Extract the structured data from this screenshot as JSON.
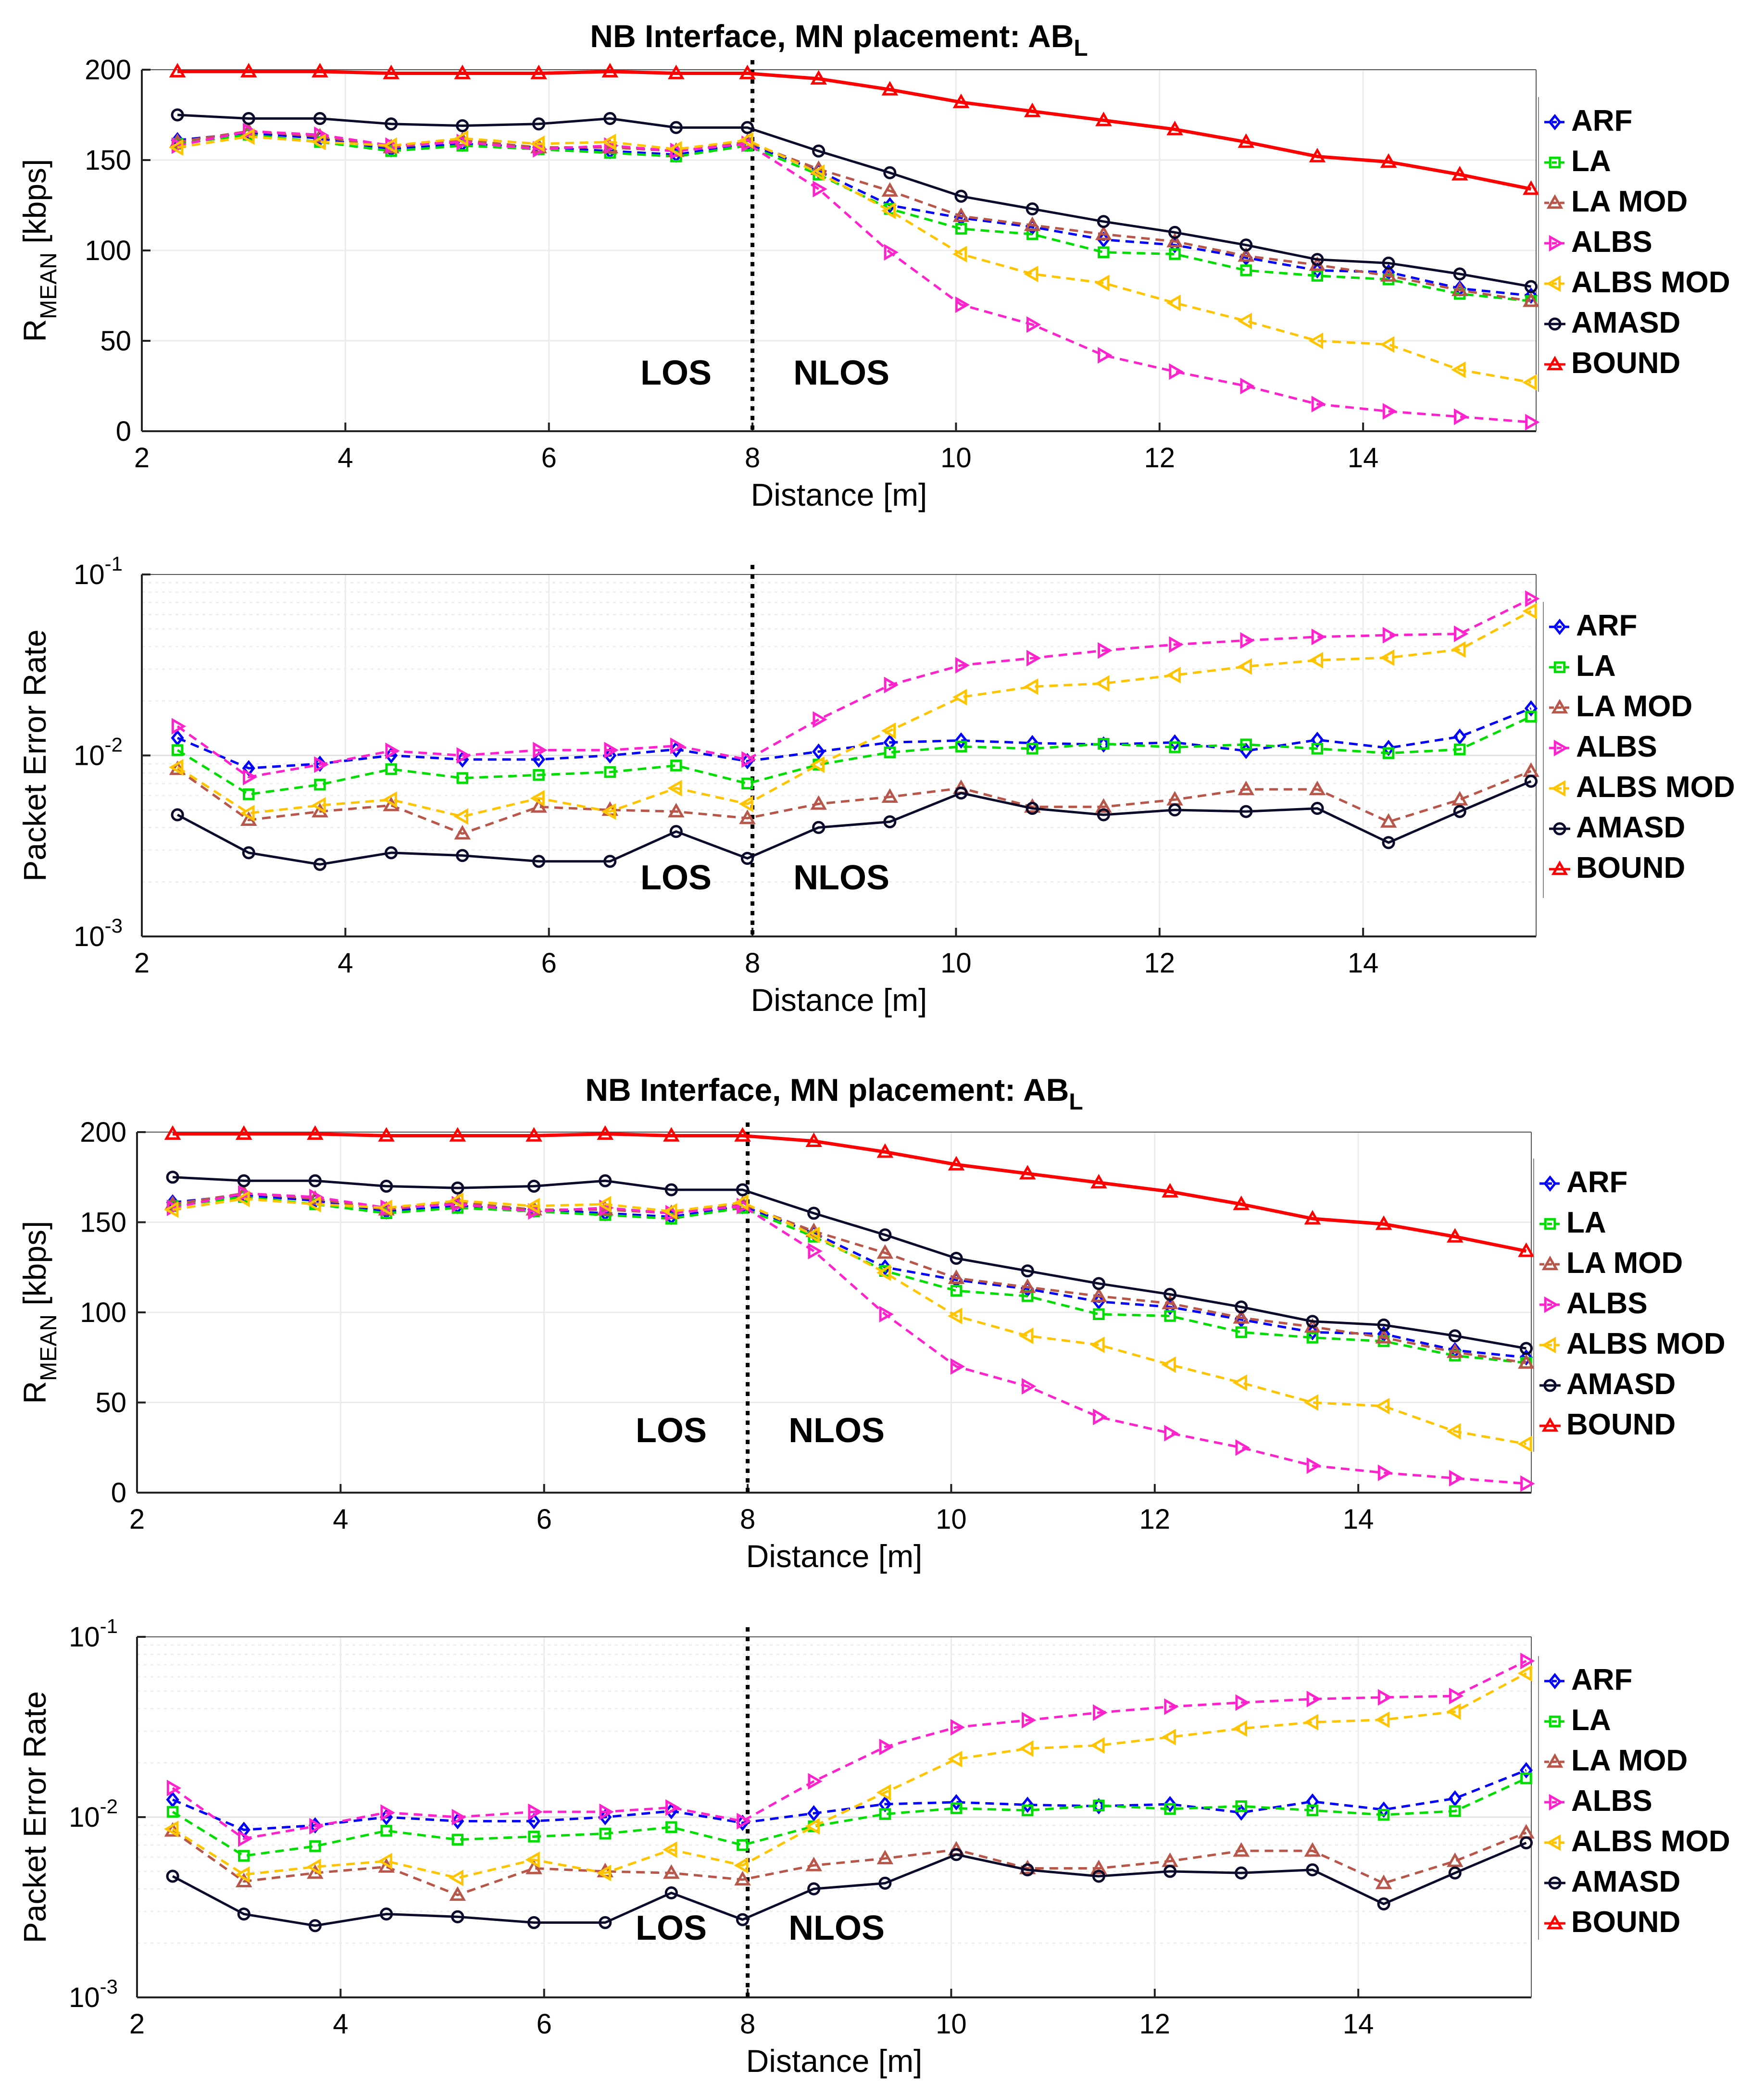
{
  "series_styles": [
    {
      "name": "ARF",
      "color": "#0000ff",
      "marker": "diamond",
      "dash": true
    },
    {
      "name": "LA",
      "color": "#00dd00",
      "marker": "square",
      "dash": true
    },
    {
      "name": "LA MOD",
      "color": "#b8564a",
      "marker": "tri-up",
      "dash": true
    },
    {
      "name": "ALBS",
      "color": "#ff22cc",
      "marker": "tri-right",
      "dash": true
    },
    {
      "name": "ALBS MOD",
      "color": "#ffc400",
      "marker": "tri-left",
      "dash": true
    },
    {
      "name": "AMASD",
      "color": "#0a0a2a",
      "marker": "circle",
      "dash": false
    },
    {
      "name": "BOUND",
      "color": "#ff0000",
      "marker": "tri-up",
      "dash": false
    }
  ],
  "chart_data": [
    {
      "type": "line",
      "title_main": "NB Interface, MN placement: AB",
      "title_sub": "L",
      "xlabel": "Distance [m]",
      "ylabel_main": "R",
      "ylabel_sub": "MEAN",
      "ylabel_unit": " [kbps]",
      "xlim": [
        2,
        15.7
      ],
      "ylim": [
        0,
        200
      ],
      "yscale": "linear",
      "xticks": [
        2,
        4,
        6,
        8,
        10,
        12,
        14
      ],
      "yticks": [
        0,
        50,
        100,
        150,
        200
      ],
      "ytick_labels": [
        "0",
        "50",
        "100",
        "150",
        "200"
      ],
      "zones": [
        "LOS",
        "NLOS"
      ],
      "divider_x": 8,
      "legend": "right",
      "x": [
        2.35,
        3.05,
        3.75,
        4.45,
        5.15,
        5.9,
        6.6,
        7.25,
        7.95,
        8.65,
        9.35,
        10.05,
        10.75,
        11.45,
        12.15,
        12.85,
        13.55,
        14.25,
        14.95,
        15.65
      ],
      "series": [
        {
          "name": "ARF",
          "values": [
            161,
            165,
            162,
            156,
            159,
            157,
            155,
            153,
            159,
            144,
            125,
            118,
            113,
            106,
            103,
            96,
            89,
            88,
            79,
            75
          ]
        },
        {
          "name": "LA",
          "values": [
            159,
            164,
            160,
            155,
            158,
            156,
            154,
            152,
            158,
            142,
            123,
            112,
            109,
            99,
            98,
            89,
            86,
            84,
            76,
            72
          ]
        },
        {
          "name": "LA MOD",
          "values": [
            160,
            166,
            163,
            157,
            161,
            157,
            157,
            155,
            160,
            145,
            133,
            119,
            114,
            109,
            105,
            97,
            92,
            86,
            78,
            72
          ]
        },
        {
          "name": "ALBS",
          "values": [
            158,
            166,
            164,
            158,
            160,
            156,
            158,
            155,
            159,
            134,
            99,
            70,
            59,
            42,
            33,
            25,
            15,
            11,
            8,
            5
          ]
        },
        {
          "name": "ALBS MOD",
          "values": [
            157,
            163,
            160,
            158,
            162,
            159,
            160,
            156,
            161,
            143,
            122,
            98,
            87,
            82,
            71,
            61,
            50,
            48,
            34,
            27
          ]
        },
        {
          "name": "AMASD",
          "values": [
            175,
            173,
            173,
            170,
            169,
            170,
            173,
            168,
            168,
            155,
            143,
            130,
            123,
            116,
            110,
            103,
            95,
            93,
            87,
            80
          ]
        },
        {
          "name": "BOUND",
          "values": [
            199,
            199,
            199,
            198,
            198,
            198,
            199,
            198,
            198,
            195,
            189,
            182,
            177,
            172,
            167,
            160,
            152,
            149,
            142,
            134
          ]
        }
      ]
    },
    {
      "type": "line",
      "title_main": "",
      "title_sub": "",
      "xlabel": "Distance [m]",
      "ylabel_main": "Packet Error Rate",
      "ylabel_sub": "",
      "ylabel_unit": "",
      "xlim": [
        2,
        15.7
      ],
      "ylim": [
        0.001,
        0.1
      ],
      "yscale": "log",
      "xticks": [
        2,
        4,
        6,
        8,
        10,
        12,
        14
      ],
      "yticks": [
        0.001,
        0.01,
        0.1
      ],
      "ytick_labels": [
        [
          "10",
          "-3"
        ],
        [
          "10",
          "-2"
        ],
        [
          "10",
          "-1"
        ]
      ],
      "zones": [
        "LOS",
        "NLOS"
      ],
      "divider_x": 8,
      "legend": "right",
      "x": [
        2.35,
        3.05,
        3.75,
        4.45,
        5.15,
        5.9,
        6.6,
        7.25,
        7.95,
        8.65,
        9.35,
        10.05,
        10.75,
        11.45,
        12.15,
        12.85,
        13.55,
        14.25,
        14.95,
        15.65
      ],
      "series": [
        {
          "name": "ARF",
          "values": [
            0.0125,
            0.0085,
            0.009,
            0.01,
            0.0095,
            0.0095,
            0.01,
            0.0108,
            0.0093,
            0.0105,
            0.0118,
            0.0121,
            0.0117,
            0.0115,
            0.0118,
            0.0106,
            0.0122,
            0.011,
            0.0127,
            0.0182
          ]
        },
        {
          "name": "LA",
          "values": [
            0.0107,
            0.0061,
            0.0069,
            0.0084,
            0.0075,
            0.0078,
            0.0081,
            0.0088,
            0.007,
            0.0089,
            0.0104,
            0.0112,
            0.0109,
            0.0116,
            0.0111,
            0.0115,
            0.0109,
            0.0103,
            0.0108,
            0.0164
          ]
        },
        {
          "name": "LA MOD",
          "values": [
            0.0084,
            0.0044,
            0.0049,
            0.0053,
            0.0037,
            0.0052,
            0.005,
            0.0049,
            0.0045,
            0.0054,
            0.0059,
            0.0066,
            0.0052,
            0.0052,
            0.0057,
            0.0065,
            0.0065,
            0.0043,
            0.0057,
            0.0082
          ]
        },
        {
          "name": "ALBS",
          "values": [
            0.0145,
            0.0076,
            0.0089,
            0.0106,
            0.01,
            0.0107,
            0.0107,
            0.0113,
            0.0095,
            0.0158,
            0.0245,
            0.0315,
            0.0345,
            0.038,
            0.041,
            0.0432,
            0.0452,
            0.0462,
            0.047,
            0.0735
          ]
        },
        {
          "name": "ALBS MOD",
          "values": [
            0.0086,
            0.0048,
            0.0053,
            0.0057,
            0.0046,
            0.0058,
            0.0049,
            0.0066,
            0.0054,
            0.0089,
            0.0137,
            0.021,
            0.024,
            0.025,
            0.0278,
            0.031,
            0.0336,
            0.0347,
            0.0385,
            0.0628
          ]
        },
        {
          "name": "AMASD",
          "values": [
            0.0047,
            0.0029,
            0.0025,
            0.0029,
            0.0028,
            0.0026,
            0.0026,
            0.0038,
            0.0027,
            0.004,
            0.0043,
            0.0062,
            0.0051,
            0.0047,
            0.005,
            0.0049,
            0.0051,
            0.0033,
            0.0049,
            0.0072
          ]
        }
      ]
    },
    {
      "type": "line",
      "title_main": "NB Interface, MN placement: AB",
      "title_sub": "L",
      "xlabel": "Distance [m]",
      "ylabel_main": "R",
      "ylabel_sub": "MEAN",
      "ylabel_unit": " [kbps]",
      "xlim": [
        2,
        15.7
      ],
      "ylim": [
        0,
        200
      ],
      "yscale": "linear",
      "xticks": [
        2,
        4,
        6,
        8,
        10,
        12,
        14
      ],
      "yticks": [
        0,
        50,
        100,
        150,
        200
      ],
      "ytick_labels": [
        "0",
        "50",
        "100",
        "150",
        "200"
      ],
      "zones": [
        "LOS",
        "NLOS"
      ],
      "divider_x": 8,
      "legend": "right",
      "x": [
        2.35,
        3.05,
        3.75,
        4.45,
        5.15,
        5.9,
        6.6,
        7.25,
        7.95,
        8.65,
        9.35,
        10.05,
        10.75,
        11.45,
        12.15,
        12.85,
        13.55,
        14.25,
        14.95,
        15.65
      ],
      "series": [
        {
          "name": "ARF",
          "values": [
            161,
            165,
            162,
            156,
            159,
            157,
            155,
            153,
            159,
            144,
            125,
            118,
            113,
            106,
            103,
            96,
            89,
            88,
            79,
            75
          ]
        },
        {
          "name": "LA",
          "values": [
            159,
            164,
            160,
            155,
            158,
            156,
            154,
            152,
            158,
            142,
            123,
            112,
            109,
            99,
            98,
            89,
            86,
            84,
            76,
            72
          ]
        },
        {
          "name": "LA MOD",
          "values": [
            160,
            166,
            163,
            157,
            161,
            157,
            157,
            155,
            160,
            145,
            133,
            119,
            114,
            109,
            105,
            97,
            92,
            86,
            78,
            72
          ]
        },
        {
          "name": "ALBS",
          "values": [
            158,
            166,
            164,
            158,
            160,
            156,
            158,
            155,
            159,
            134,
            99,
            70,
            59,
            42,
            33,
            25,
            15,
            11,
            8,
            5
          ]
        },
        {
          "name": "ALBS MOD",
          "values": [
            157,
            163,
            160,
            158,
            162,
            159,
            160,
            156,
            161,
            143,
            122,
            98,
            87,
            82,
            71,
            61,
            50,
            48,
            34,
            27
          ]
        },
        {
          "name": "AMASD",
          "values": [
            175,
            173,
            173,
            170,
            169,
            170,
            173,
            168,
            168,
            155,
            143,
            130,
            123,
            116,
            110,
            103,
            95,
            93,
            87,
            80
          ]
        },
        {
          "name": "BOUND",
          "values": [
            199,
            199,
            199,
            198,
            198,
            198,
            199,
            198,
            198,
            195,
            189,
            182,
            177,
            172,
            167,
            160,
            152,
            149,
            142,
            134
          ]
        }
      ]
    },
    {
      "type": "line",
      "title_main": "",
      "title_sub": "",
      "xlabel": "Distance [m]",
      "ylabel_main": "Packet Error Rate",
      "ylabel_sub": "",
      "ylabel_unit": "",
      "xlim": [
        2,
        15.7
      ],
      "ylim": [
        0.001,
        0.1
      ],
      "yscale": "log",
      "xticks": [
        2,
        4,
        6,
        8,
        10,
        12,
        14
      ],
      "yticks": [
        0.001,
        0.01,
        0.1
      ],
      "ytick_labels": [
        [
          "10",
          "-3"
        ],
        [
          "10",
          "-2"
        ],
        [
          "10",
          "-1"
        ]
      ],
      "zones": [
        "LOS",
        "NLOS"
      ],
      "divider_x": 8,
      "legend": "right",
      "x": [
        2.35,
        3.05,
        3.75,
        4.45,
        5.15,
        5.9,
        6.6,
        7.25,
        7.95,
        8.65,
        9.35,
        10.05,
        10.75,
        11.45,
        12.15,
        12.85,
        13.55,
        14.25,
        14.95,
        15.65
      ],
      "series": [
        {
          "name": "ARF",
          "values": [
            0.0125,
            0.0085,
            0.009,
            0.01,
            0.0095,
            0.0095,
            0.01,
            0.0108,
            0.0093,
            0.0105,
            0.0118,
            0.0121,
            0.0117,
            0.0115,
            0.0118,
            0.0106,
            0.0122,
            0.011,
            0.0127,
            0.0182
          ]
        },
        {
          "name": "LA",
          "values": [
            0.0107,
            0.0061,
            0.0069,
            0.0084,
            0.0075,
            0.0078,
            0.0081,
            0.0088,
            0.007,
            0.0089,
            0.0104,
            0.0112,
            0.0109,
            0.0116,
            0.0111,
            0.0115,
            0.0109,
            0.0103,
            0.0108,
            0.0164
          ]
        },
        {
          "name": "LA MOD",
          "values": [
            0.0084,
            0.0044,
            0.0049,
            0.0053,
            0.0037,
            0.0052,
            0.005,
            0.0049,
            0.0045,
            0.0054,
            0.0059,
            0.0066,
            0.0052,
            0.0052,
            0.0057,
            0.0065,
            0.0065,
            0.0043,
            0.0057,
            0.0082
          ]
        },
        {
          "name": "ALBS",
          "values": [
            0.0145,
            0.0076,
            0.0089,
            0.0106,
            0.01,
            0.0107,
            0.0107,
            0.0113,
            0.0095,
            0.0158,
            0.0245,
            0.0315,
            0.0345,
            0.038,
            0.041,
            0.0432,
            0.0452,
            0.0462,
            0.047,
            0.0735
          ]
        },
        {
          "name": "ALBS MOD",
          "values": [
            0.0086,
            0.0048,
            0.0053,
            0.0057,
            0.0046,
            0.0058,
            0.0049,
            0.0066,
            0.0054,
            0.0089,
            0.0137,
            0.021,
            0.024,
            0.025,
            0.0278,
            0.031,
            0.0336,
            0.0347,
            0.0385,
            0.0628
          ]
        },
        {
          "name": "AMASD",
          "values": [
            0.0047,
            0.0029,
            0.0025,
            0.0029,
            0.0028,
            0.0026,
            0.0026,
            0.0038,
            0.0027,
            0.004,
            0.0043,
            0.0062,
            0.0051,
            0.0047,
            0.005,
            0.0049,
            0.0051,
            0.0033,
            0.0049,
            0.0072
          ]
        }
      ]
    }
  ]
}
